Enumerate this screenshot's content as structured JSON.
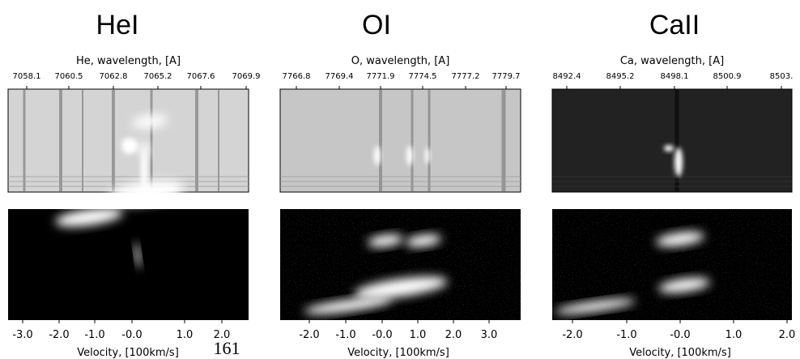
{
  "panels": [
    {
      "title": "HeI",
      "top_axis_label": "He, wavelength, [A]",
      "top_ticks": [
        "7058.1",
        "7060.5",
        "7062.8",
        "7065.2",
        "7067.6",
        "7069.9"
      ],
      "bottom_ticks": [
        "-3.0",
        "-2.0",
        "-1.0",
        "-0.0",
        "1.0",
        "2.0"
      ],
      "bottom_axis_label": "Velocity, [100km/s]"
    },
    {
      "title": "OI",
      "top_axis_label": "O, wavelength, [A]",
      "top_ticks": [
        "7766.8",
        "7769.4",
        "7771.9",
        "7774.5",
        "7777.2",
        "7779.7"
      ],
      "bottom_ticks": [
        "-2.0",
        "-1.0",
        "-0.0",
        "1.0",
        "2.0",
        "3.0"
      ],
      "bottom_axis_label": "Velocity, [100km/s]"
    },
    {
      "title": "CaII",
      "top_axis_label": "Ca, wavelength, [A]",
      "top_ticks": [
        "8492.4",
        "8495.2",
        "8498.1",
        "8500.9",
        "8503."
      ],
      "bottom_ticks": [
        "-2.0",
        "-1.0",
        "-0.0",
        "1.0",
        "2.0"
      ],
      "bottom_axis_label": "Velocity, [100km/s]"
    }
  ],
  "page_number": "161"
}
